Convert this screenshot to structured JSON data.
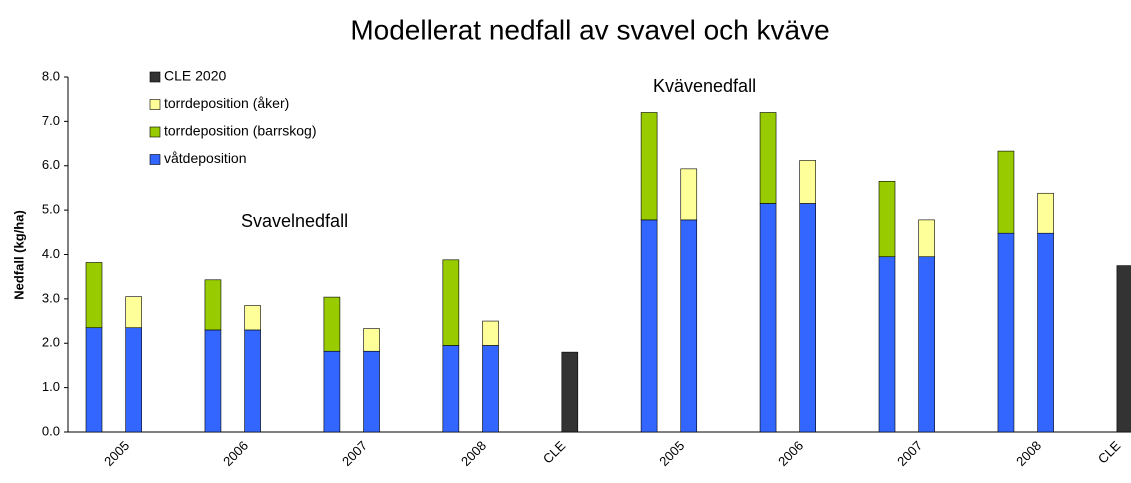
{
  "chart_data": {
    "type": "stacked_bar",
    "title": "Modellerat nedfall av svavel och kväve",
    "y_label": "Nedfall (kg/ha)",
    "annotations": [
      "Svavelnedfall",
      "Kvävenedfall"
    ],
    "categories": [
      null,
      "2005",
      null,
      null,
      "2006",
      null,
      null,
      "2007",
      null,
      null,
      "2008",
      null,
      "CLE",
      null,
      null,
      "2005",
      null,
      null,
      "2006",
      null,
      null,
      "2007",
      null,
      null,
      "2008",
      null,
      "CLE"
    ],
    "series": [
      {
        "name": "våtdeposition",
        "color": "#3366ff",
        "values": [
          2.35,
          2.35,
          null,
          2.3,
          2.3,
          null,
          1.82,
          1.82,
          null,
          1.95,
          1.95,
          null,
          null,
          null,
          4.78,
          4.78,
          null,
          5.15,
          5.15,
          null,
          3.95,
          3.95,
          null,
          4.48,
          4.48,
          null,
          null
        ]
      },
      {
        "name": "torrdeposition (barrskog)",
        "color": "#99cc00",
        "values": [
          1.47,
          null,
          null,
          1.13,
          null,
          null,
          1.22,
          null,
          null,
          1.93,
          null,
          null,
          null,
          null,
          2.42,
          null,
          null,
          2.05,
          null,
          null,
          1.7,
          null,
          null,
          1.85,
          null,
          null,
          null
        ]
      },
      {
        "name": "torrdeposition (åker)",
        "color": "#ffff99",
        "values": [
          null,
          0.7,
          null,
          null,
          0.55,
          null,
          null,
          0.51,
          null,
          null,
          0.55,
          null,
          null,
          null,
          null,
          1.15,
          null,
          null,
          0.97,
          null,
          null,
          0.83,
          null,
          null,
          0.9,
          null,
          null
        ]
      },
      {
        "name": "CLE 2020",
        "color": "#333333",
        "values": [
          null,
          null,
          null,
          null,
          null,
          null,
          null,
          null,
          null,
          null,
          null,
          null,
          1.8,
          null,
          null,
          null,
          null,
          null,
          null,
          null,
          null,
          null,
          null,
          null,
          null,
          null,
          3.75
        ]
      }
    ],
    "ylim": [
      0,
      8
    ],
    "yticks": [
      {
        "value": 0,
        "label": "0.0"
      },
      {
        "value": 1,
        "label": "1.0"
      },
      {
        "value": 2,
        "label": "2.0"
      },
      {
        "value": 3,
        "label": "3.0"
      },
      {
        "value": 4,
        "label": "4.0"
      },
      {
        "value": 5,
        "label": "5.0"
      },
      {
        "value": 6,
        "label": "6.0"
      },
      {
        "value": 7,
        "label": "7.0"
      },
      {
        "value": 8,
        "label": "8.0"
      }
    ],
    "legend": "top-left",
    "grid": false
  }
}
